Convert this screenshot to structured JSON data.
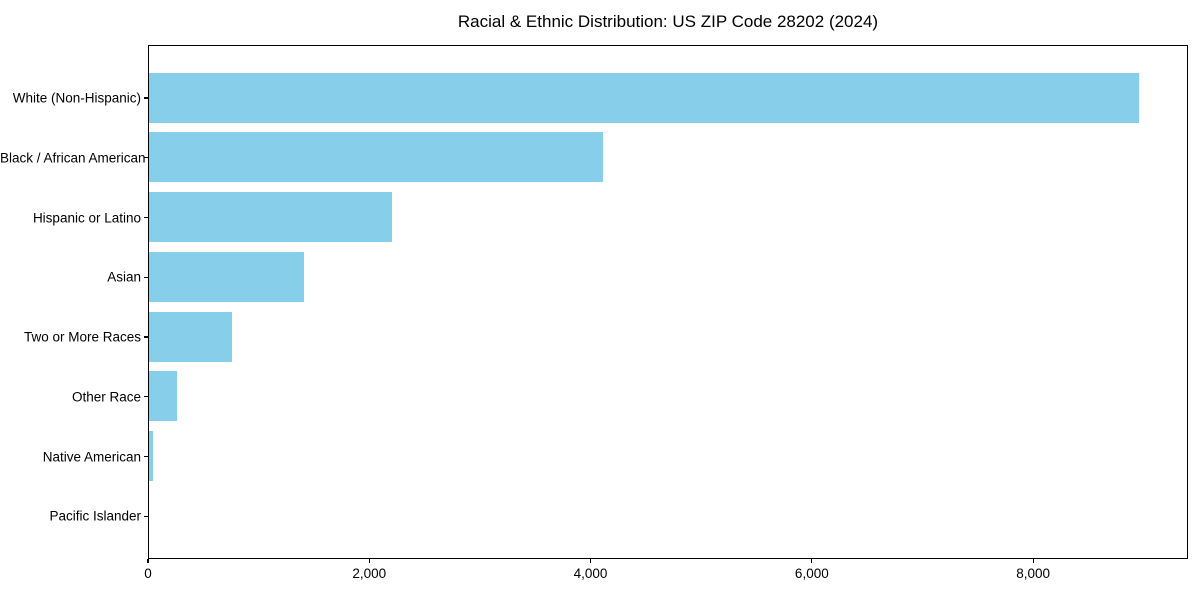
{
  "chart_data": {
    "type": "bar",
    "orientation": "horizontal",
    "title": "Racial & Ethnic Distribution: US ZIP Code 28202 (2024)",
    "categories": [
      "White (Non-Hispanic)",
      "Black / African American",
      "Hispanic or Latino",
      "Asian",
      "Two or More Races",
      "Other Race",
      "Native American",
      "Pacific Islander"
    ],
    "values": [
      8950,
      4100,
      2200,
      1400,
      750,
      250,
      35,
      0
    ],
    "xlabel": "",
    "ylabel": "",
    "xlim": [
      0,
      9400
    ],
    "xticks": [
      0,
      2000,
      4000,
      6000,
      8000
    ],
    "xtick_labels": [
      "0",
      "2,000",
      "4,000",
      "6,000",
      "8,000"
    ],
    "bar_color": "#87CEEB",
    "background_color": "#ffffff",
    "axis_color": "#000000",
    "grid": false,
    "legend": null
  }
}
